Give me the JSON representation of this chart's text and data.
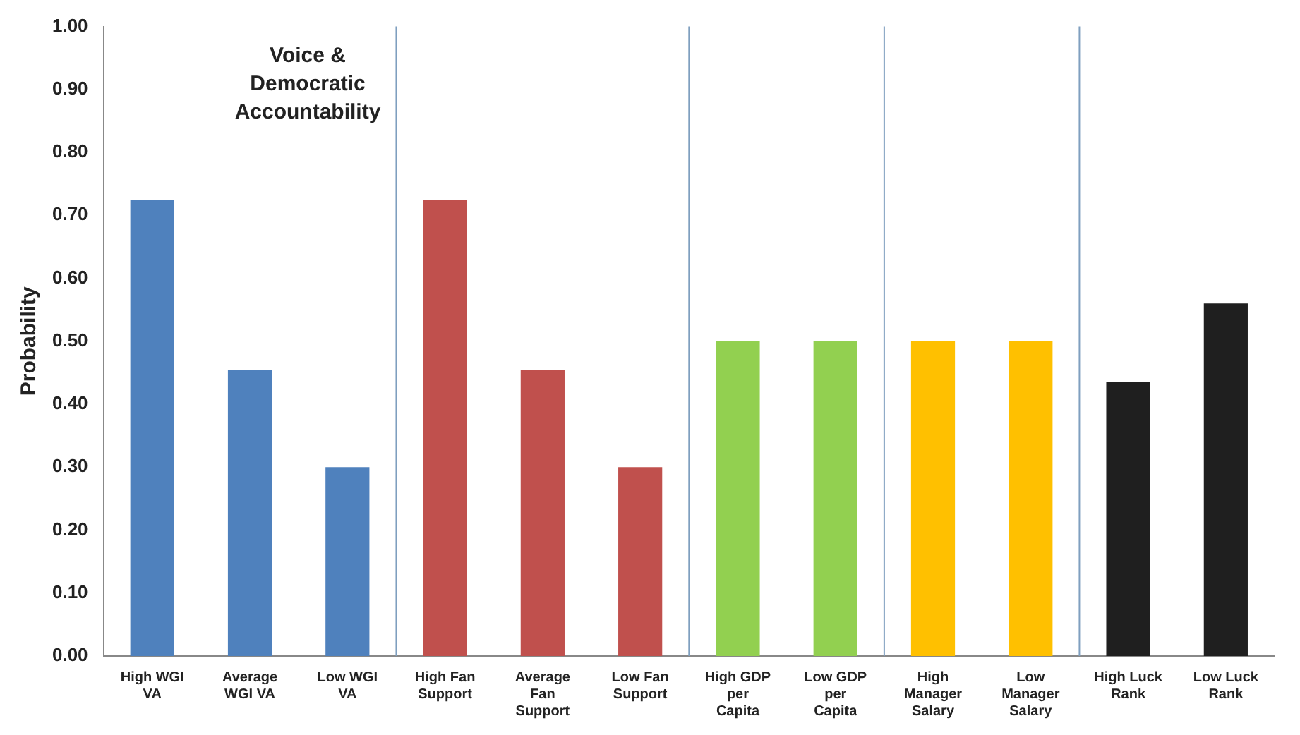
{
  "chart_data": {
    "type": "bar",
    "ylabel": "Probability",
    "categories": [
      "High WGI VA",
      "Average WGI VA",
      "Low WGI VA",
      "High Fan Support",
      "Average Fan Support",
      "Low Fan Support",
      "High GDP per Capita",
      "Low GDP per Capita",
      "High Manager Salary",
      "Low Manager Salary",
      "High Luck Rank",
      "Low Luck Rank"
    ],
    "values": [
      0.725,
      0.455,
      0.3,
      0.725,
      0.455,
      0.3,
      0.5,
      0.5,
      0.5,
      0.5,
      0.435,
      0.56
    ],
    "colors": [
      "#4f81bd",
      "#4f81bd",
      "#4f81bd",
      "#c0504d",
      "#c0504d",
      "#c0504d",
      "#92d050",
      "#92d050",
      "#ffc000",
      "#ffc000",
      "#1f1f1f",
      "#1f1f1f"
    ],
    "ylim": [
      0,
      1
    ],
    "yticks": [
      {
        "value": 0,
        "label": "0.00"
      },
      {
        "value": 0.1,
        "label": "0.10"
      },
      {
        "value": 0.2,
        "label": "0.20"
      },
      {
        "value": 0.3,
        "label": "0.30"
      },
      {
        "value": 0.4,
        "label": "0.40"
      },
      {
        "value": 0.5,
        "label": "0.50"
      },
      {
        "value": 0.6,
        "label": "0.60"
      },
      {
        "value": 0.7,
        "label": "0.70"
      },
      {
        "value": 0.8,
        "label": "0.80"
      },
      {
        "value": 0.9,
        "label": "0.90"
      },
      {
        "value": 1,
        "label": "1.00"
      }
    ],
    "annotations": [
      "Voice & Democratic Accountability"
    ],
    "grid": false,
    "legend": false
  }
}
